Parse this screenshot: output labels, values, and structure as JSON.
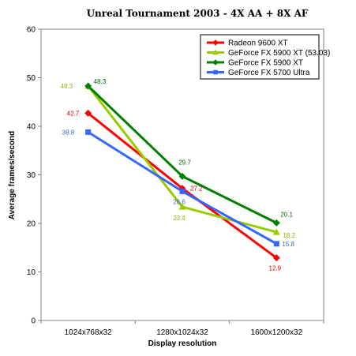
{
  "chart_data": {
    "type": "line",
    "title": "Unreal Tournament 2003 - 4X AA + 8X AF",
    "xlabel": "Display resolution",
    "ylabel": "Average frames/second",
    "ylim": [
      0,
      60
    ],
    "yticks": [
      0,
      10,
      20,
      30,
      40,
      50,
      60
    ],
    "grid": false,
    "legend_position": "top-right",
    "categories": [
      "1024x768x32",
      "1280x1024x32",
      "1600x1200x32"
    ],
    "series": [
      {
        "name": "Radeon 9600 XT",
        "color": "#ff0000",
        "label_color": "#cc0000",
        "marker": "diamond",
        "values": [
          42.7,
          27.2,
          12.9
        ],
        "labels": [
          "42.7",
          "27.2",
          "12.9"
        ]
      },
      {
        "name": "GeForce FX 5900 XT (53.03)",
        "color": "#99cc00",
        "label_color": "#99aa00",
        "marker": "triangle",
        "values": [
          48.3,
          23.4,
          18.2
        ],
        "labels": [
          "48.3",
          "23.4",
          "18.2"
        ]
      },
      {
        "name": "GeForce FX 5900 XT",
        "color": "#008000",
        "label_color": "#006600",
        "marker": "diamond",
        "values": [
          48.3,
          29.7,
          20.1
        ],
        "labels": [
          "48.3",
          "29.7",
          "20.1"
        ]
      },
      {
        "name": "GeForce FX 5700 Ultra",
        "color": "#3366ff",
        "label_color": "#3366cc",
        "marker": "square",
        "values": [
          38.8,
          26.6,
          15.8
        ],
        "labels": [
          "38.8",
          "26.6",
          "15.8"
        ]
      }
    ]
  }
}
